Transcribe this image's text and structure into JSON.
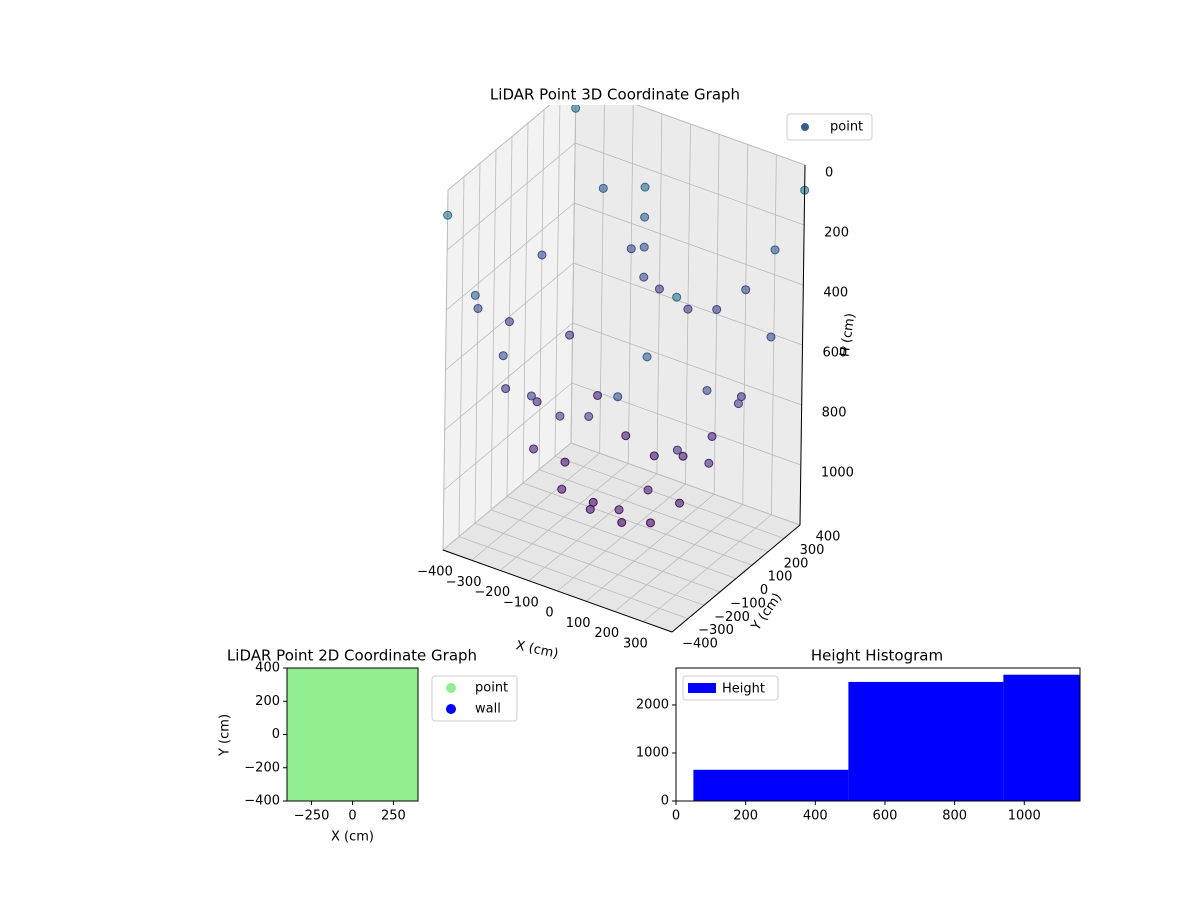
{
  "chart_data": [
    {
      "type": "scatter3d",
      "title": "LiDAR Point 3D Coordinate Graph",
      "x_label": "X (cm)",
      "y_label": "Y (cm)",
      "z_label": "H (cm)",
      "xlim": [
        -400,
        400
      ],
      "ylim": [
        -400,
        400
      ],
      "zlim": [
        0,
        1200
      ],
      "z_inverted": true,
      "xticks": [
        {
          "value": -400,
          "label": "−400"
        },
        {
          "value": -300,
          "label": "−300"
        },
        {
          "value": -200,
          "label": "−200"
        },
        {
          "value": -100,
          "label": "−100"
        },
        0,
        100,
        200,
        300
      ],
      "yticks": [
        {
          "value": -400,
          "label": "−400"
        },
        {
          "value": -300,
          "label": "−300"
        },
        {
          "value": -200,
          "label": "−200"
        },
        {
          "value": -100,
          "label": "−100"
        },
        0,
        100,
        200,
        300,
        400
      ],
      "zticks": [
        0,
        200,
        400,
        600,
        800,
        1000
      ],
      "grid": true,
      "legend": "upper right",
      "series": [
        {
          "name": "point",
          "colormap": "viridis",
          "x": [
            -400,
            -300,
            -200,
            -100,
            0,
            100,
            200,
            300,
            400,
            -400,
            -300,
            -200,
            -100,
            0,
            100,
            200,
            300,
            400,
            -400,
            -300,
            -200,
            -100,
            0,
            100,
            200,
            300,
            400,
            -400,
            -300,
            -200,
            -100,
            0,
            100,
            200,
            300,
            400,
            -400,
            -300,
            -200,
            -100,
            0,
            100,
            200,
            300,
            400,
            -100,
            -100,
            -100,
            -100
          ],
          "y": [
            -400,
            -400,
            -400,
            -400,
            -400,
            -400,
            -400,
            -400,
            -400,
            -200,
            -200,
            -200,
            -200,
            -200,
            -200,
            -200,
            -200,
            -200,
            0,
            0,
            0,
            0,
            0,
            0,
            0,
            0,
            0,
            200,
            200,
            200,
            200,
            200,
            200,
            200,
            200,
            200,
            400,
            400,
            400,
            400,
            400,
            400,
            400,
            400,
            400,
            300,
            300,
            300,
            300
          ],
          "z": [
            84,
            317,
            484,
            584,
            617,
            584,
            484,
            317,
            84,
            484,
            717,
            884,
            984,
            1017,
            984,
            884,
            717,
            484,
            617,
            850,
            1017,
            1117,
            1150,
            1117,
            1017,
            850,
            617,
            484,
            717,
            884,
            984,
            1017,
            984,
            884,
            717,
            484,
            84,
            317,
            484,
            584,
            617,
            584,
            484,
            317,
            84,
            200,
            300,
            400,
            500
          ]
        }
      ]
    },
    {
      "type": "scatter",
      "title": "LiDAR Point 2D Coordinate Graph",
      "x_label": "X (cm)",
      "y_label": "Y (cm)",
      "xlim": [
        -400,
        400
      ],
      "ylim": [
        -400,
        400
      ],
      "xticks": [
        {
          "value": -250,
          "label": "−250"
        },
        0,
        250
      ],
      "yticks": [
        {
          "value": -400,
          "label": "−400"
        },
        {
          "value": -200,
          "label": "−200"
        },
        0,
        200,
        400
      ],
      "legend": "outside upper right",
      "series": [
        {
          "name": "point",
          "color": "#90ee90",
          "x": [
            -300,
            -100,
            100,
            300,
            -300,
            -100,
            100,
            300,
            -300,
            -100,
            100,
            300,
            -300,
            -100,
            100,
            300
          ],
          "y": [
            -300,
            -300,
            -300,
            -300,
            -100,
            -100,
            -100,
            -100,
            100,
            100,
            100,
            100,
            300,
            300,
            300,
            300
          ]
        },
        {
          "name": "wall",
          "color": "#0000ff",
          "x": [],
          "y": []
        }
      ]
    },
    {
      "type": "histogram",
      "title": "Height Histogram",
      "bins": [
        50,
        495,
        940,
        1160
      ],
      "xlim": [
        0,
        1160
      ],
      "ylim": [
        0,
        2770
      ],
      "xticks": [
        0,
        200,
        400,
        600,
        800,
        1000
      ],
      "yticks": [
        0,
        1000,
        2000
      ],
      "legend": "upper left",
      "series": [
        {
          "name": "Height",
          "color": "#0000ff",
          "values": [
            650,
            2480,
            2630
          ]
        }
      ]
    }
  ]
}
